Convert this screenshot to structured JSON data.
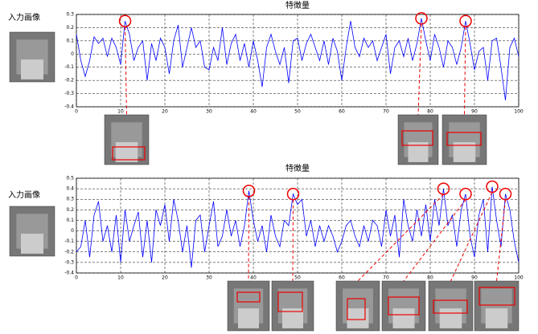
{
  "chart_data": [
    {
      "type": "line",
      "title": "特徴量",
      "input_image_label": "入力画像",
      "x": [
        0,
        1,
        2,
        3,
        4,
        5,
        6,
        7,
        8,
        9,
        10,
        11,
        12,
        13,
        14,
        15,
        16,
        17,
        18,
        19,
        20,
        21,
        22,
        23,
        24,
        25,
        26,
        27,
        28,
        29,
        30,
        31,
        32,
        33,
        34,
        35,
        36,
        37,
        38,
        39,
        40,
        41,
        42,
        43,
        44,
        45,
        46,
        47,
        48,
        49,
        50,
        51,
        52,
        53,
        54,
        55,
        56,
        57,
        58,
        59,
        60,
        61,
        62,
        63,
        64,
        65,
        66,
        67,
        68,
        69,
        70,
        71,
        72,
        73,
        74,
        75,
        76,
        77,
        78,
        79,
        80,
        81,
        82,
        83,
        84,
        85,
        86,
        87,
        88,
        89,
        90,
        91,
        92,
        93,
        94,
        95,
        96,
        97,
        98,
        99,
        100
      ],
      "series": [
        {
          "color": "#0000ff",
          "values": [
            0.15,
            -0.05,
            -0.17,
            -0.05,
            0.13,
            0.08,
            0.12,
            -0.02,
            0.12,
            0.05,
            -0.08,
            0.25,
            0.15,
            -0.05,
            0.05,
            0.1,
            -0.2,
            0.08,
            -0.05,
            0.12,
            0.05,
            -0.15,
            0.1,
            0.22,
            -0.1,
            0.05,
            0.2,
            0.05,
            0.1,
            -0.1,
            -0.12,
            0.05,
            -0.05,
            0.2,
            -0.08,
            0.08,
            0.15,
            -0.05,
            0.08,
            -0.1,
            0.1,
            -0.05,
            -0.25,
            0.05,
            0.15,
            0.02,
            -0.08,
            0.05,
            -0.22,
            0.1,
            0.12,
            -0.05,
            0.08,
            0.15,
            0.05,
            -0.05,
            0.1,
            -0.08,
            0.12,
            0.02,
            -0.2,
            0.05,
            0.25,
            0.05,
            -0.02,
            0.12,
            0.05,
            0.1,
            -0.05,
            0.05,
            0.15,
            -0.15,
            0.05,
            0.1,
            -0.02,
            0.12,
            -0.05,
            0.08,
            0.27,
            0.1,
            -0.05,
            0.15,
            0.05,
            -0.1,
            0.1,
            0.05,
            -0.08,
            0.05,
            0.25,
            0.08,
            -0.12,
            0.02,
            0.05,
            -0.2,
            0.1,
            0.12,
            -0.1,
            -0.35,
            0.05,
            0.12,
            -0.02
          ]
        }
      ],
      "xlim": [
        0,
        100
      ],
      "xticks": [
        0,
        10,
        20,
        30,
        40,
        50,
        60,
        70,
        80,
        90,
        100
      ],
      "ylim": [
        -0.4,
        0.3
      ],
      "yticks": [
        -0.4,
        -0.3,
        -0.2,
        -0.1,
        0,
        0.1,
        0.2,
        0.3
      ],
      "grid": true,
      "highlight_x": [
        11,
        78,
        88
      ]
    },
    {
      "type": "line",
      "title": "特徴量",
      "input_image_label": "入力画像",
      "x": [
        0,
        1,
        2,
        3,
        4,
        5,
        6,
        7,
        8,
        9,
        10,
        11,
        12,
        13,
        14,
        15,
        16,
        17,
        18,
        19,
        20,
        21,
        22,
        23,
        24,
        25,
        26,
        27,
        28,
        29,
        30,
        31,
        32,
        33,
        34,
        35,
        36,
        37,
        38,
        39,
        40,
        41,
        42,
        43,
        44,
        45,
        46,
        47,
        48,
        49,
        50,
        51,
        52,
        53,
        54,
        55,
        56,
        57,
        58,
        59,
        60,
        61,
        62,
        63,
        64,
        65,
        66,
        67,
        68,
        69,
        70,
        71,
        72,
        73,
        74,
        75,
        76,
        77,
        78,
        79,
        80,
        81,
        82,
        83,
        84,
        85,
        86,
        87,
        88,
        89,
        90,
        91,
        92,
        93,
        94,
        95,
        96,
        97,
        98,
        99,
        100
      ],
      "series": [
        {
          "color": "#0000ff",
          "values": [
            -0.2,
            -0.15,
            0.1,
            -0.25,
            0.15,
            0.28,
            -0.1,
            0.05,
            -0.2,
            0.15,
            -0.3,
            0.2,
            -0.1,
            0.05,
            0.18,
            -0.25,
            0.1,
            -0.3,
            0.2,
            0.05,
            0.25,
            -0.1,
            0.3,
            0.1,
            -0.2,
            0.05,
            -0.35,
            0.1,
            0.15,
            -0.2,
            0.05,
            0.28,
            -0.15,
            -0.05,
            0.2,
            -0.05,
            0.1,
            -0.15,
            0.05,
            0.38,
            0.1,
            -0.1,
            0.05,
            -0.2,
            0.15,
            -0.05,
            -0.15,
            0.1,
            0.05,
            0.35,
            0.25,
            0.3,
            -0.05,
            0.1,
            -0.15,
            0.05,
            -0.1,
            0.05,
            -0.05,
            -0.2,
            -0.1,
            0.05,
            0.1,
            -0.05,
            -0.15,
            0.05,
            -0.1,
            0.1,
            0.05,
            -0.15,
            0.2,
            -0.05,
            0.15,
            -0.25,
            0.3,
            0.05,
            -0.1,
            0.2,
            -0.05,
            0.25,
            -0.1,
            0.3,
            0.05,
            0.4,
            0.05,
            0.15,
            -0.15,
            0.2,
            0.35,
            -0.05,
            -0.25,
            0.15,
            0.3,
            -0.2,
            0.42,
            0.1,
            -0.15,
            0.35,
            0.2,
            -0.1,
            -0.3
          ]
        }
      ],
      "xlim": [
        0,
        100
      ],
      "xticks": [
        0,
        10,
        20,
        30,
        40,
        50,
        60,
        70,
        80,
        90,
        100
      ],
      "ylim": [
        -0.4,
        0.5
      ],
      "yticks": [
        -0.4,
        -0.3,
        -0.2,
        -0.1,
        0,
        0.1,
        0.2,
        0.3,
        0.4,
        0.5
      ],
      "grid": true,
      "highlight_x": [
        39,
        49,
        83,
        88,
        94,
        97
      ]
    }
  ]
}
